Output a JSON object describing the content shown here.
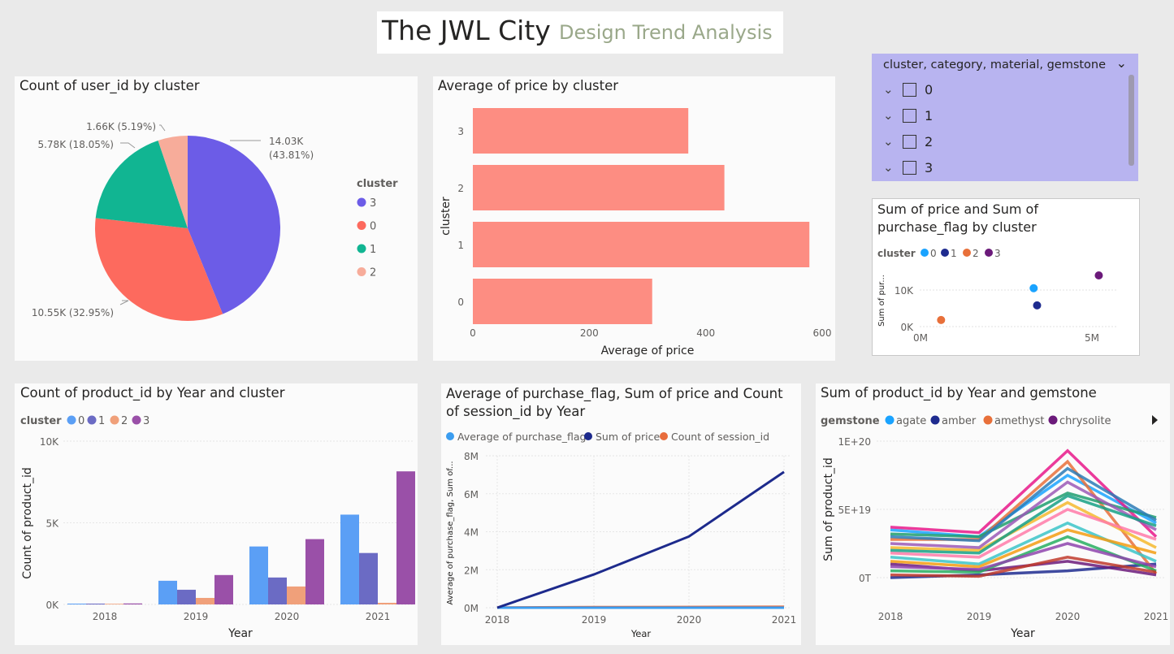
{
  "header": {
    "title": "The JWL City",
    "subtitle": "Design Trend Analysis"
  },
  "colors": {
    "c0": "#5b9ff5",
    "c1": "#6b6bc4",
    "c2": "#f0a07a",
    "c3": "#9a50a8",
    "pie3": "#6c5ce7",
    "pie0": "#fd6a5e",
    "pie1": "#11b592",
    "pie2": "#f7ac9a",
    "bar": "#fd8d82",
    "line_sum": "#1d2a8c",
    "line_cnt": "#e86c3c",
    "line_avg": "#3b9df0",
    "slicer_bg": "#b8b4f0"
  },
  "pie": {
    "title": "Count of user_id by cluster",
    "legend_title": "cluster",
    "chart_data": {
      "type": "pie",
      "slices": [
        {
          "label": "3",
          "value": 14030,
          "text1": "14.03K",
          "text2": "(43.81%)"
        },
        {
          "label": "0",
          "value": 10550,
          "text1": "10.55K (32.95%)"
        },
        {
          "label": "1",
          "value": 5780,
          "text1": "5.78K (18.05%)"
        },
        {
          "label": "2",
          "value": 1660,
          "text1": "1.66K (5.19%)"
        }
      ]
    }
  },
  "hbar": {
    "title": "Average of price by cluster",
    "chart_data": {
      "type": "bar",
      "orientation": "horizontal",
      "categories": [
        "3",
        "2",
        "1",
        "0"
      ],
      "values": [
        370,
        432,
        578,
        308
      ],
      "xlabel": "Average of price",
      "ylabel": "cluster",
      "xlim": [
        0,
        600
      ],
      "xticks": [
        "0",
        "200",
        "400",
        "600"
      ]
    }
  },
  "slicer": {
    "header": "cluster, category, material, gemstone",
    "items": [
      "0",
      "1",
      "2",
      "3"
    ]
  },
  "scatter": {
    "title_line1": "Sum of price and Sum of",
    "title_line2": "purchase_flag by cluster",
    "legend_title": "cluster",
    "chart_data": {
      "type": "scatter",
      "ylabel": "Sum of pur...",
      "xticks": [
        "0M",
        "5M"
      ],
      "yticks": [
        "0K",
        "10K"
      ],
      "points": [
        {
          "cluster": "0",
          "x": 3.3,
          "y": 10500
        },
        {
          "cluster": "1",
          "x": 3.4,
          "y": 5800
        },
        {
          "cluster": "2",
          "x": 0.6,
          "y": 1800
        },
        {
          "cluster": "3",
          "x": 5.2,
          "y": 14000
        }
      ]
    }
  },
  "colbar": {
    "title": "Count of product_id by Year and cluster",
    "legend_title": "cluster",
    "chart_data": {
      "type": "bar",
      "categories": [
        "2018",
        "2019",
        "2020",
        "2021"
      ],
      "series": [
        {
          "name": "0",
          "values": [
            50,
            1450,
            3550,
            5500
          ]
        },
        {
          "name": "1",
          "values": [
            50,
            900,
            1650,
            3150
          ]
        },
        {
          "name": "2",
          "values": [
            40,
            400,
            1100,
            100
          ]
        },
        {
          "name": "3",
          "values": [
            60,
            1800,
            4000,
            8150
          ]
        }
      ],
      "xlabel": "Year",
      "ylabel": "Count of product_id",
      "ylim": [
        0,
        10000
      ],
      "yticks": [
        "0K",
        "5K",
        "10K"
      ]
    }
  },
  "line": {
    "title_line1": "Average of purchase_flag, Sum of price and Count",
    "title_line2": "of session_id by Year",
    "chart_data": {
      "type": "line",
      "x": [
        "2018",
        "2019",
        "2020",
        "2021"
      ],
      "series": [
        {
          "name": "Average of purchase_flag",
          "values": [
            0,
            0,
            0,
            0
          ]
        },
        {
          "name": "Sum of price",
          "values": [
            0,
            1750000,
            3750000,
            7150000
          ]
        },
        {
          "name": "Count of session_id",
          "values": [
            10000,
            30000,
            40000,
            50000
          ]
        }
      ],
      "xlabel": "Year",
      "ylabel": "Average of purchase_flag, Sum of...",
      "ylim": [
        0,
        8000000
      ],
      "yticks": [
        "0M",
        "2M",
        "4M",
        "6M",
        "8M"
      ]
    }
  },
  "gem": {
    "title": "Sum of product_id by Year and gemstone",
    "legend_title": "gemstone",
    "legend_items": [
      "agate",
      "amber",
      "amethyst",
      "chrysolite"
    ],
    "chart_data": {
      "type": "line",
      "x": [
        "2018",
        "2019",
        "2020",
        "2021"
      ],
      "xlabel": "Year",
      "ylabel": "Sum of product_id",
      "yticks": [
        "0T",
        "5E+19",
        "1E+20"
      ],
      "ylim": [
        0,
        1e+20
      ],
      "series": [
        {
          "name": "agate",
          "values": [
            3.5e+19,
            3e+19,
            7.5e+19,
            4e+19
          ]
        },
        {
          "name": "amber",
          "values": [
            0.0,
            2e+18,
            5e+18,
            1e+19
          ]
        },
        {
          "name": "amethyst",
          "values": [
            2.8e+19,
            2.8e+19,
            8.5e+19,
            3e+18
          ]
        },
        {
          "name": "chrysolite",
          "values": [
            1e+19,
            5e+18,
            1.2e+19,
            2e+18
          ]
        },
        {
          "name": "",
          "values": [
            3.7e+19,
            3.3e+19,
            9.3e+19,
            3e+19
          ]
        },
        {
          "name": "",
          "values": [
            3.2e+19,
            3e+19,
            6.2e+19,
            4.4e+19
          ]
        },
        {
          "name": "",
          "values": [
            2.2e+19,
            2e+19,
            5.5e+19,
            2.2e+19
          ]
        },
        {
          "name": "",
          "values": [
            1.5e+19,
            1e+19,
            4e+19,
            1.2e+19
          ]
        },
        {
          "name": "",
          "values": [
            2.5e+19,
            2.2e+19,
            7e+19,
            3.5e+19
          ]
        },
        {
          "name": "",
          "values": [
            5e+18,
            4e+18,
            3e+19,
            5e+18
          ]
        },
        {
          "name": "",
          "values": [
            1.8e+19,
            1.5e+19,
            5e+19,
            2.8e+19
          ]
        },
        {
          "name": "",
          "values": [
            3e+19,
            2.7e+19,
            8e+19,
            4.2e+19
          ]
        },
        {
          "name": "",
          "values": [
            1.2e+19,
            8e+18,
            3.5e+19,
            1.8e+19
          ]
        },
        {
          "name": "",
          "values": [
            8e+18,
            6e+18,
            2.5e+19,
            8e+18
          ]
        },
        {
          "name": "",
          "values": [
            2e+19,
            1.8e+19,
            6e+19,
            3.8e+19
          ]
        },
        {
          "name": "",
          "values": [
            2e+18,
            1e+18,
            1.5e+19,
            4e+18
          ]
        }
      ]
    }
  }
}
